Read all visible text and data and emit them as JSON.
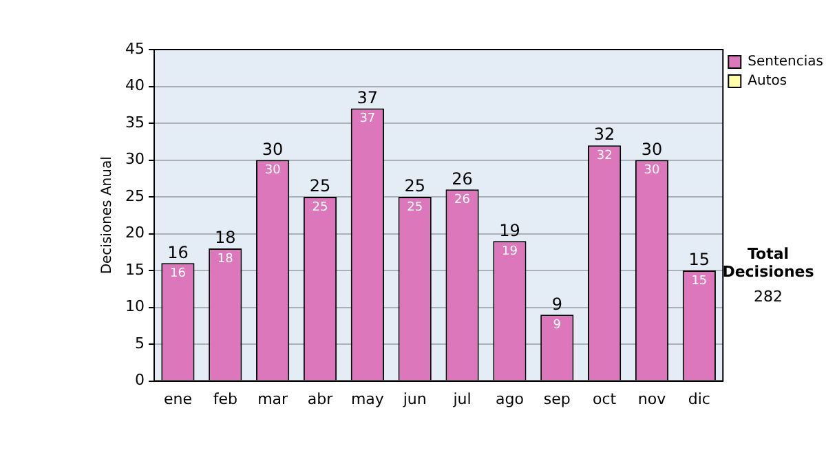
{
  "chart_data": {
    "type": "bar",
    "ylabel": "Decisiones Anual",
    "categories": [
      "ene",
      "feb",
      "mar",
      "abr",
      "may",
      "jun",
      "jul",
      "ago",
      "sep",
      "oct",
      "nov",
      "dic"
    ],
    "series": [
      {
        "name": "Sentencias",
        "color": "#dd77bb",
        "values": [
          16,
          18,
          30,
          25,
          37,
          25,
          26,
          19,
          9,
          32,
          30,
          15
        ],
        "value_labels": [
          "16",
          "18",
          "30",
          "25",
          "37",
          "25",
          "26",
          "19",
          "9",
          "32",
          "30",
          "15"
        ]
      },
      {
        "name": "Autos",
        "color": "#ffffaa",
        "values": [
          0,
          0,
          0,
          0,
          0,
          0,
          0,
          0,
          0,
          0,
          0,
          0
        ]
      }
    ],
    "stacked": true,
    "totals": [
      "16",
      "18",
      "30",
      "25",
      "37",
      "25",
      "26",
      "19",
      "9",
      "32",
      "30",
      "15"
    ],
    "ylim": [
      0,
      45
    ],
    "yticks": [
      0,
      5,
      10,
      15,
      20,
      25,
      30,
      35,
      40,
      45
    ],
    "grid": "y",
    "legend": "right",
    "annotations": [
      "Total Decisiones",
      "282"
    ]
  }
}
